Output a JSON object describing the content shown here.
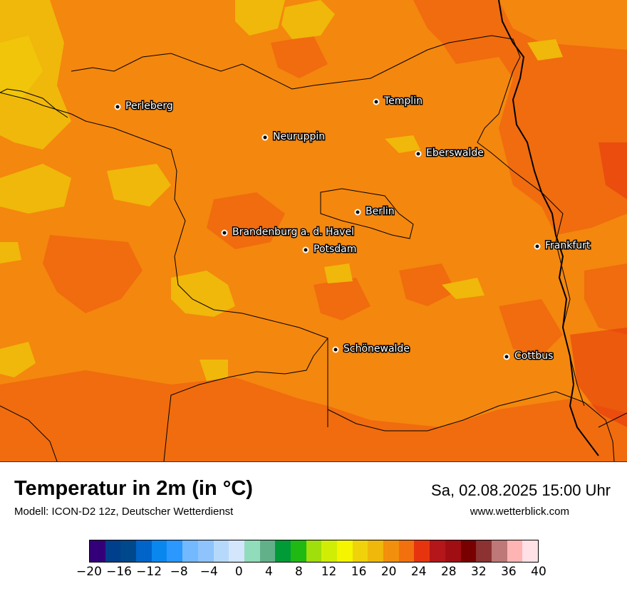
{
  "map": {
    "base_color": "#f4870e",
    "cities": [
      {
        "name": "Perleberg"
      },
      {
        "name": "Templin"
      },
      {
        "name": "Neuruppin"
      },
      {
        "name": "Eberswalde"
      },
      {
        "name": "Berlin"
      },
      {
        "name": "Brandenburg a. d. Havel"
      },
      {
        "name": "Potsdam"
      },
      {
        "name": "Frankfurt"
      },
      {
        "name": "Schönewalde"
      },
      {
        "name": "Cottbus"
      }
    ]
  },
  "footer": {
    "title": "Temperatur in 2m (in °C)",
    "model": "Modell: ICON-D2 12z, Deutscher Wetterdienst",
    "datetime": "Sa, 02.08.2025 15:00 Uhr",
    "website": "www.wetterblick.com"
  },
  "legend": {
    "colors": [
      "#34007a",
      "#003f8c",
      "#00488c",
      "#0064c8",
      "#0a87ef",
      "#2a98ff",
      "#73b9ff",
      "#8ec4fb",
      "#b6d9fb",
      "#d3e6fc",
      "#90dcbb",
      "#62b08a",
      "#009b37",
      "#20b914",
      "#a0de0c",
      "#d0ee05",
      "#f5f500",
      "#f0d20a",
      "#f0b80a",
      "#f28f0c",
      "#f2700e",
      "#e6350e",
      "#b4161a",
      "#a00e14",
      "#780000",
      "#8c3232",
      "#be7878",
      "#ffb4b4",
      "#ffe1e6"
    ],
    "tick_labels": [
      "−20",
      "−16",
      "−12",
      "−8",
      "−4",
      "0",
      "4",
      "8",
      "12",
      "16",
      "20",
      "24",
      "28",
      "32",
      "36",
      "40"
    ]
  }
}
